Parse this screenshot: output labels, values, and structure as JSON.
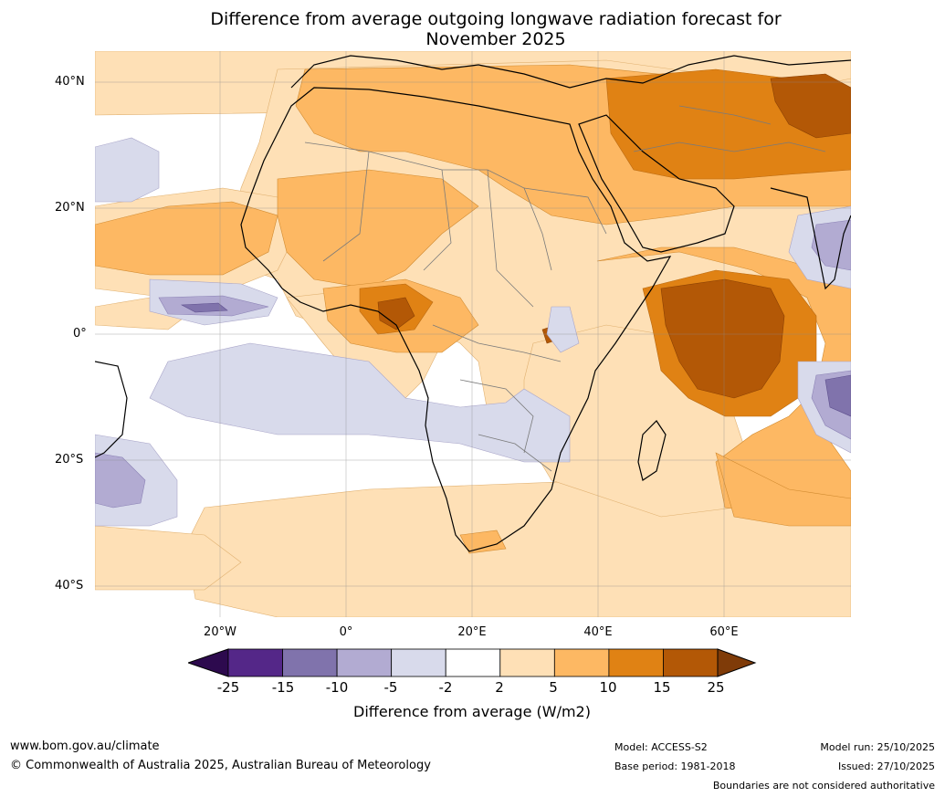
{
  "title": {
    "line1": "Difference from average outgoing longwave radiation forecast for",
    "line2": "November 2025"
  },
  "axes": {
    "lat_labels": [
      "40°N",
      "20°N",
      "0°",
      "20°S",
      "40°S"
    ],
    "lon_labels": [
      "20°W",
      "0°",
      "20°E",
      "40°E",
      "60°E"
    ],
    "lat_values": [
      40,
      20,
      0,
      -20,
      -40
    ],
    "lon_values": [
      -20,
      0,
      20,
      40,
      60
    ],
    "extent": {
      "lon_min": -40,
      "lon_max": 80,
      "lat_min": -45,
      "lat_max": 45
    }
  },
  "legend": {
    "title": "Difference from average (W/m2)",
    "ticks": [
      "-25",
      "-15",
      "-10",
      "-5",
      "-2",
      "2",
      "5",
      "10",
      "15",
      "25"
    ],
    "colors": {
      "below_min": "#2d0a4e",
      "bins": [
        "#542788",
        "#8073ac",
        "#b2abd2",
        "#d8daeb",
        "#ffffff",
        "#fee0b6",
        "#fdb863",
        "#e08214",
        "#b35806"
      ],
      "above_max": "#7f3b08"
    }
  },
  "footer": {
    "url": "www.bom.gov.au/climate",
    "copyright": "© Commonwealth of Australia 2025, Australian Bureau of Meteorology",
    "model": "Model: ACCESS-S2",
    "base_period": "Base period: 1981-2018",
    "model_run": "Model run: 25/10/2025",
    "issued": "Issued: 27/10/2025",
    "disclaimer": "Boundaries are not considered authoritative"
  }
}
